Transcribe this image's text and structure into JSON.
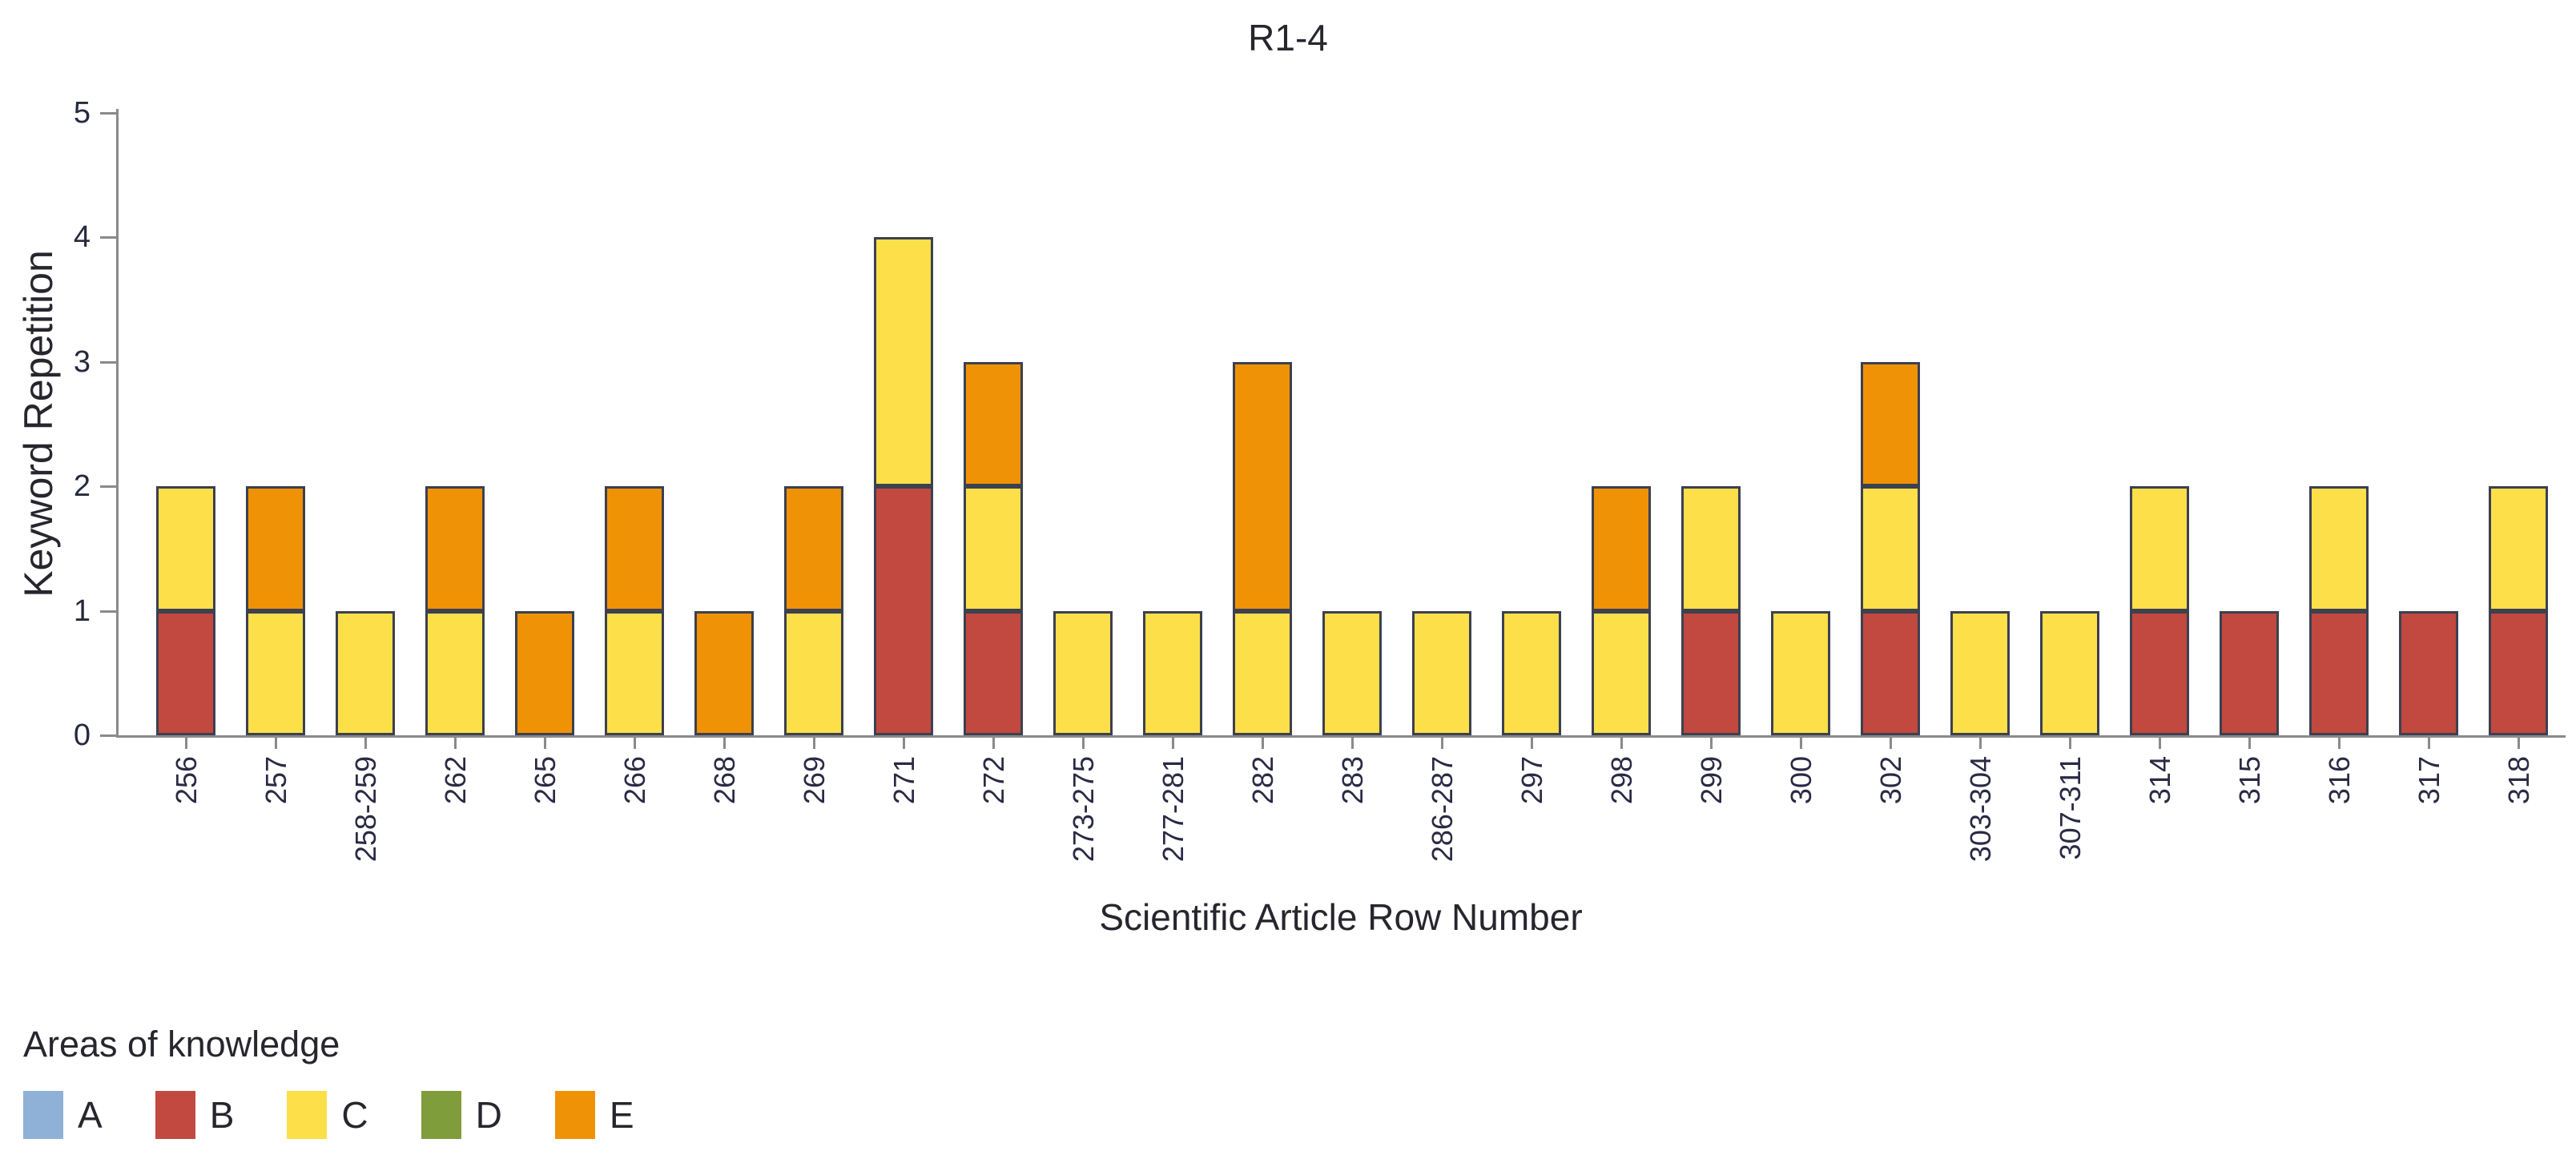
{
  "title": "R1-4",
  "legend": {
    "title": "Areas of knowledge"
  },
  "y_axis": {
    "label": "Keyword Repetition",
    "ticks": [
      0,
      1,
      2,
      3,
      4,
      5
    ]
  },
  "x_axis": {
    "label": "Scientific Article Row Number"
  },
  "chart_data": {
    "type": "bar",
    "stacked": true,
    "title": "R1-4",
    "xlabel": "Scientific Article Row Number",
    "ylabel": "Keyword Repetition",
    "ylim": [
      0,
      5
    ],
    "grid": false,
    "legend_title": "Areas of knowledge",
    "legend_position": "bottom-left",
    "categories": [
      "256",
      "257",
      "258-259",
      "262",
      "265",
      "266",
      "268",
      "269",
      "271",
      "272",
      "273-275",
      "277-281",
      "282",
      "283",
      "286-287",
      "297",
      "298",
      "299",
      "300",
      "302",
      "303-304",
      "307-311",
      "314",
      "315",
      "316",
      "317",
      "318"
    ],
    "series": [
      {
        "name": "A",
        "color": "#8fb1d8",
        "values": [
          0,
          0,
          0,
          0,
          0,
          0,
          0,
          0,
          0,
          0,
          0,
          0,
          0,
          0,
          0,
          0,
          0,
          0,
          0,
          0,
          0,
          0,
          0,
          0,
          0,
          0,
          0
        ]
      },
      {
        "name": "B",
        "color": "#c1493f",
        "values": [
          1,
          0,
          0,
          0,
          0,
          0,
          0,
          0,
          2,
          1,
          0,
          0,
          0,
          0,
          0,
          0,
          0,
          1,
          0,
          1,
          0,
          0,
          1,
          1,
          1,
          1,
          1
        ]
      },
      {
        "name": "C",
        "color": "#fcdf49",
        "values": [
          1,
          1,
          1,
          1,
          0,
          1,
          0,
          1,
          2,
          1,
          1,
          1,
          1,
          1,
          1,
          1,
          1,
          1,
          1,
          1,
          1,
          1,
          1,
          0,
          1,
          0,
          1
        ]
      },
      {
        "name": "D",
        "color": "#7f9d3a",
        "values": [
          0,
          0,
          0,
          0,
          0,
          0,
          0,
          0,
          0,
          0,
          0,
          0,
          0,
          0,
          0,
          0,
          0,
          0,
          0,
          0,
          0,
          0,
          0,
          0,
          0,
          0,
          0
        ]
      },
      {
        "name": "E",
        "color": "#f09206",
        "values": [
          0,
          1,
          0,
          1,
          1,
          1,
          1,
          1,
          0,
          1,
          0,
          0,
          2,
          0,
          0,
          0,
          1,
          0,
          0,
          1,
          0,
          0,
          0,
          0,
          0,
          0,
          0
        ]
      }
    ]
  }
}
